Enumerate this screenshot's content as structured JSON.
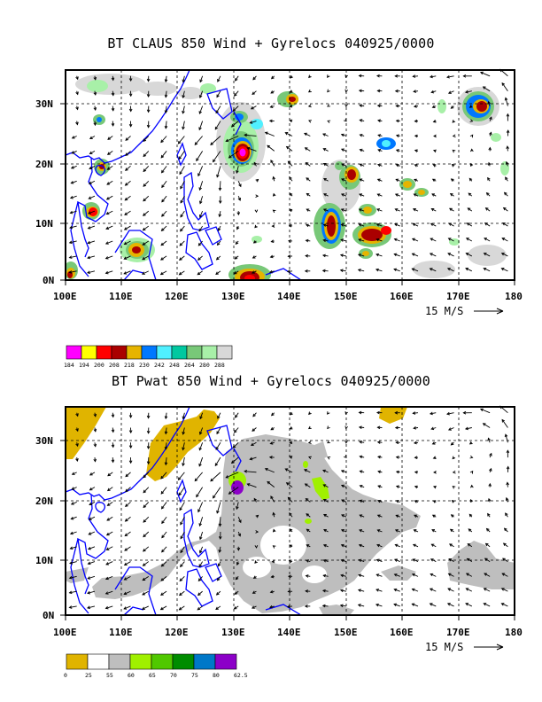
{
  "panel1": {
    "title": "BT CLAUS 850 Wind + Gyrelocs 040925/0000",
    "lat_labels": [
      "30N",
      "20N",
      "10N",
      "0N"
    ],
    "lon_labels": [
      "100E",
      "110E",
      "120E",
      "130E",
      "140E",
      "150E",
      "160E",
      "170E",
      "180"
    ],
    "scale_label": "15 M/S",
    "colorbar_labels": [
      "184",
      "194",
      "200",
      "208",
      "218",
      "230",
      "242",
      "248",
      "264",
      "280",
      "288"
    ],
    "colorbar_colors": [
      "#ff00ff",
      "#ffff00",
      "#ff0000",
      "#aa0000",
      "#e6b400",
      "#0078ff",
      "#50f0ff",
      "#00c8a0",
      "#78c878",
      "#a8f0a8",
      "#d8d8d8"
    ]
  },
  "panel2": {
    "title": "BT Pwat 850 Wind + Gyrelocs 040925/0000",
    "lat_labels": [
      "30N",
      "20N",
      "10N",
      "0N"
    ],
    "lon_labels": [
      "100E",
      "110E",
      "120E",
      "130E",
      "140E",
      "150E",
      "160E",
      "170E",
      "180"
    ],
    "scale_label": "15 M/S",
    "colorbar_labels": [
      "0",
      "25",
      "55",
      "60",
      "65",
      "70",
      "75",
      "80",
      "62.5"
    ],
    "colorbar_colors": [
      "#e0b400",
      "#ffffff",
      "#bebebe",
      "#a0f000",
      "#50c800",
      "#008c00",
      "#0078c8",
      "#8c00c8"
    ]
  },
  "map": {
    "lat_range": [
      0,
      35
    ],
    "lon_range": [
      100,
      180
    ],
    "coast_color": "#0000ff",
    "grid": "dashed"
  }
}
